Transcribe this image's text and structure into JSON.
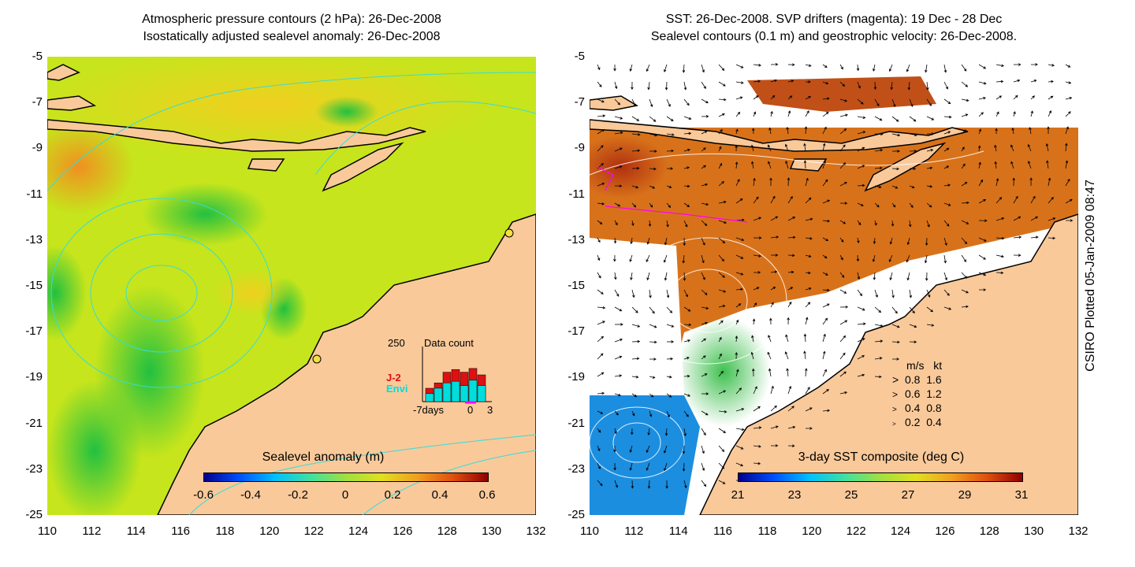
{
  "left_panel": {
    "title_line1": "Atmospheric pressure contours (2 hPa): 26-Dec-2008",
    "title_line2": "Isostatically adjusted sealevel anomaly: 26-Dec-2008",
    "colorbar": {
      "title": "Sealevel anomaly (m)",
      "labels": [
        "-0.6",
        "-0.4",
        "-0.2",
        "0",
        "0.2",
        "0.4",
        "0.6"
      ]
    },
    "inset": {
      "y_max_label": "250",
      "title": "Data count",
      "series_labels": [
        "J-2",
        "Envi"
      ],
      "x_labels": [
        "-7days",
        "0",
        "3"
      ],
      "colors": {
        "j2": "#dd1111",
        "envi": "#00dddd",
        "marker": "#ff00ff"
      },
      "bars_j2": [
        0.25,
        0.35,
        0.55,
        0.6,
        0.55,
        0.62,
        0.5
      ],
      "bars_envi": [
        0.15,
        0.25,
        0.35,
        0.38,
        0.3,
        0.4,
        0.3
      ]
    }
  },
  "right_panel": {
    "title_line1": "SST: 26-Dec-2008. SVP drifters (magenta): 19 Dec - 28 Dec",
    "title_line2": "Sealevel contours (0.1 m) and geostrophic velocity: 26-Dec-2008.",
    "colorbar": {
      "title": "3-day SST composite (deg C)",
      "labels": [
        "21",
        "23",
        "25",
        "27",
        "29",
        "31"
      ]
    },
    "velocity_legend": {
      "header_ms": "m/s",
      "header_kt": "kt",
      "rows": [
        {
          "ms": "0.8",
          "kt": "1.6"
        },
        {
          "ms": "0.6",
          "kt": "1.2"
        },
        {
          "ms": "0.4",
          "kt": "0.8"
        },
        {
          "ms": "0.2",
          "kt": "0.4"
        }
      ]
    }
  },
  "axes": {
    "y_ticks": [
      "-5",
      "-7",
      "-9",
      "-11",
      "-13",
      "-15",
      "-17",
      "-19",
      "-21",
      "-23",
      "-25"
    ],
    "x_ticks": [
      "110",
      "112",
      "114",
      "116",
      "118",
      "120",
      "122",
      "124",
      "126",
      "128",
      "130",
      "132"
    ]
  },
  "credit": "CSIRO Plotted 05-Jan-2009 08:47",
  "colors": {
    "land": "#f9c99a",
    "ocean_base": "#c8e81a",
    "contour": "#33dddd",
    "sst_warm": "#d86a10",
    "sst_cool": "#1c8ee0"
  }
}
